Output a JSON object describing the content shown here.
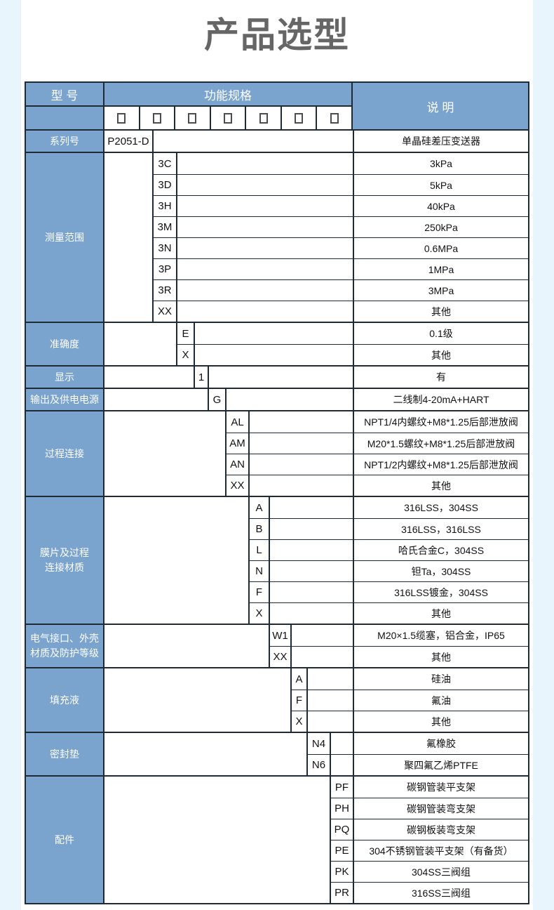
{
  "page": {
    "title": "产品选型"
  },
  "colors": {
    "header_blue": "#7aa3ce",
    "border": "#1e2a36",
    "page_bg": "#e9f5fc",
    "title_gray": "#666666"
  },
  "icons": {
    "checkbox": "empty-square"
  },
  "table": {
    "header": {
      "model_col": "型 号",
      "spec_col": "功能规格",
      "desc_col": "说 明",
      "checkbox_count": 7
    },
    "sections": [
      {
        "category": "系列号",
        "rows": [
          {
            "code": "P2051-D",
            "desc": "单晶硅差压变送器"
          }
        ]
      },
      {
        "category": "测量范围",
        "rows": [
          {
            "code": "3C",
            "desc": "3kPa"
          },
          {
            "code": "3D",
            "desc": "5kPa"
          },
          {
            "code": "3H",
            "desc": "40kPa"
          },
          {
            "code": "3M",
            "desc": "250kPa"
          },
          {
            "code": "3N",
            "desc": "0.6MPa"
          },
          {
            "code": "3P",
            "desc": "1MPa"
          },
          {
            "code": "3R",
            "desc": "3MPa"
          },
          {
            "code": "XX",
            "desc": "其他"
          }
        ]
      },
      {
        "category": "准确度",
        "rows": [
          {
            "code": "E",
            "desc": "0.1级"
          },
          {
            "code": "X",
            "desc": "其他"
          }
        ]
      },
      {
        "category": "显示",
        "rows": [
          {
            "code": "1",
            "desc": "有"
          }
        ]
      },
      {
        "category": "输出及供电电源",
        "rows": [
          {
            "code": "G",
            "desc": "二线制4-20mA+HART"
          }
        ]
      },
      {
        "category": "过程连接",
        "rows": [
          {
            "code": "AL",
            "desc": "NPT1/4内螺纹+M8*1.25后部泄放阀"
          },
          {
            "code": "AM",
            "desc": "M20*1.5螺纹+M8*1.25后部泄放阀"
          },
          {
            "code": "AN",
            "desc": "NPT1/2内螺纹+M8*1.25后部泄放阀"
          },
          {
            "code": "XX",
            "desc": "其他"
          }
        ]
      },
      {
        "category": "膜片及过程\n连接材质",
        "rows": [
          {
            "code": "A",
            "desc": "316LSS，304SS"
          },
          {
            "code": "B",
            "desc": "316LSS，316LSS"
          },
          {
            "code": "L",
            "desc": "哈氏合金C，304SS"
          },
          {
            "code": "N",
            "desc": "钽Ta，304SS"
          },
          {
            "code": "F",
            "desc": "316LSS镀金，304SS"
          },
          {
            "code": "X",
            "desc": "其他"
          }
        ]
      },
      {
        "category": "电气接口、外壳\n材质及防护等级",
        "rows": [
          {
            "code": "W1",
            "desc": "M20×1.5缆塞，铝合金，IP65"
          },
          {
            "code": "XX",
            "desc": "其他"
          }
        ]
      },
      {
        "category": "填充液",
        "rows": [
          {
            "code": "A",
            "desc": "硅油"
          },
          {
            "code": "F",
            "desc": "氟油"
          },
          {
            "code": "X",
            "desc": "其他"
          }
        ]
      },
      {
        "category": "密封垫",
        "rows": [
          {
            "code": "N4",
            "desc": "氟橡胶"
          },
          {
            "code": "N6",
            "desc": "聚四氟乙烯PTFE"
          }
        ]
      },
      {
        "category": "配件",
        "rows": [
          {
            "code": "PF",
            "desc": "碳钢管装平支架"
          },
          {
            "code": "PH",
            "desc": "碳钢管装弯支架"
          },
          {
            "code": "PQ",
            "desc": "碳钢板装弯支架"
          },
          {
            "code": "PE",
            "desc": "304不锈钢管装平支架（有备货）"
          },
          {
            "code": "PK",
            "desc": "304SS三阀组"
          },
          {
            "code": "PR",
            "desc": "316SS三阀组"
          }
        ]
      }
    ]
  }
}
